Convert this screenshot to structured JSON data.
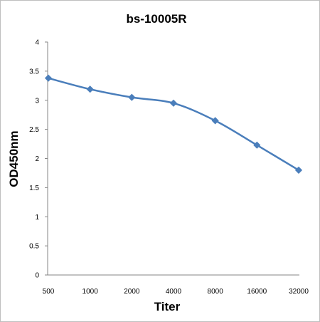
{
  "chart_data": {
    "type": "line",
    "title": "bs-10005R",
    "xlabel": "Titer",
    "ylabel": "OD450nm",
    "categories": [
      "500",
      "1000",
      "2000",
      "4000",
      "8000",
      "16000",
      "32000"
    ],
    "series": [
      {
        "values": [
          3.38,
          3.19,
          3.05,
          2.95,
          2.65,
          2.23,
          1.8
        ]
      }
    ],
    "ylim": [
      0,
      4
    ],
    "yticks": [
      "0",
      "0.5",
      "1",
      "1.5",
      "2",
      "2.5",
      "3",
      "3.5",
      "4"
    ],
    "grid": false,
    "legend": "none",
    "colors": {
      "series": "#4a7ebb",
      "axis": "#868686"
    }
  }
}
